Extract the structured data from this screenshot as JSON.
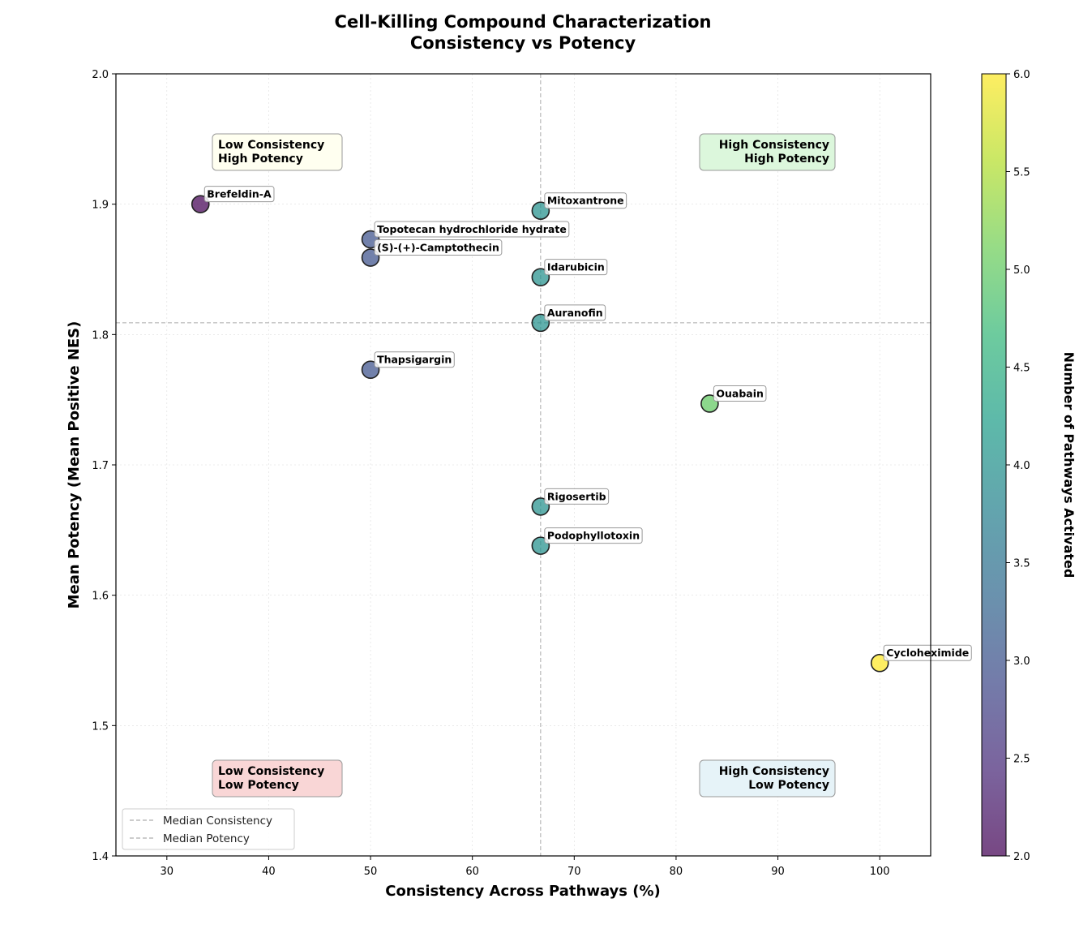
{
  "chart_data": {
    "type": "scatter",
    "title": "Cell-Killing Compound Characterization",
    "subtitle": "Consistency vs Potency",
    "xlabel": "Consistency Across Pathways (%)",
    "ylabel": "Mean Potency (Mean Positive NES)",
    "xlim": [
      25,
      105
    ],
    "ylim": [
      1.4,
      2.0
    ],
    "xticks": [
      30,
      40,
      50,
      60,
      70,
      80,
      90,
      100
    ],
    "yticks": [
      1.4,
      1.5,
      1.6,
      1.7,
      1.8,
      1.9,
      2.0
    ],
    "grid": true,
    "colorbar": {
      "label": "Number of Pathways Activated",
      "range": [
        2.0,
        6.0
      ],
      "ticks": [
        "2.0",
        "2.5",
        "3.0",
        "3.5",
        "4.0",
        "4.5",
        "5.0",
        "5.5",
        "6.0"
      ],
      "colormap": "viridis"
    },
    "points": [
      {
        "name": "Brefeldin-A",
        "x": 33.3,
        "y": 1.9,
        "pathways": 2
      },
      {
        "name": "Mitoxantrone",
        "x": 66.7,
        "y": 1.895,
        "pathways": 4
      },
      {
        "name": "Topotecan hydrochloride hydrate",
        "x": 50.0,
        "y": 1.873,
        "pathways": 3
      },
      {
        "name": "(S)-(+)-Camptothecin",
        "x": 50.0,
        "y": 1.859,
        "pathways": 3
      },
      {
        "name": "Idarubicin",
        "x": 66.7,
        "y": 1.844,
        "pathways": 4
      },
      {
        "name": "Auranofin",
        "x": 66.7,
        "y": 1.809,
        "pathways": 4
      },
      {
        "name": "Thapsigargin",
        "x": 50.0,
        "y": 1.773,
        "pathways": 3
      },
      {
        "name": "Ouabain",
        "x": 83.3,
        "y": 1.747,
        "pathways": 5
      },
      {
        "name": "Rigosertib",
        "x": 66.7,
        "y": 1.668,
        "pathways": 4
      },
      {
        "name": "Podophyllotoxin",
        "x": 66.7,
        "y": 1.638,
        "pathways": 4
      },
      {
        "name": "Cycloheximide",
        "x": 100.0,
        "y": 1.548,
        "pathways": 6
      }
    ],
    "median_consistency": 66.7,
    "median_potency": 1.809,
    "legend": {
      "placement": "lower-left",
      "entries": [
        "Median Consistency",
        "Median Potency"
      ]
    },
    "quadrants": [
      {
        "lines": [
          "Low Consistency",
          "High Potency"
        ],
        "position": "top-left",
        "color": "#fffff0"
      },
      {
        "lines": [
          "High Consistency",
          "High Potency"
        ],
        "position": "top-right",
        "color": "#dcf7dc"
      },
      {
        "lines": [
          "Low Consistency",
          "Low Potency"
        ],
        "position": "bottom-left",
        "color": "#f9d6d6"
      },
      {
        "lines": [
          "High Consistency",
          "Low Potency"
        ],
        "position": "bottom-right",
        "color": "#e6f3f8"
      }
    ]
  }
}
